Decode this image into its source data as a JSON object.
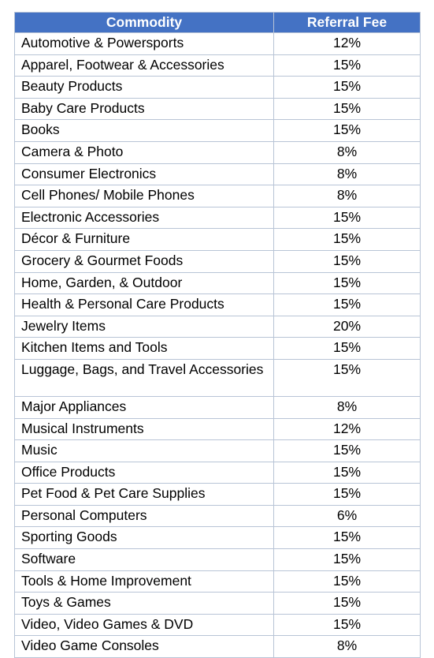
{
  "table": {
    "headers": {
      "commodity": "Commodity",
      "fee": "Referral Fee"
    },
    "header_color": "#4472c4",
    "rows": [
      {
        "commodity": "Automotive & Powersports",
        "fee": "12%"
      },
      {
        "commodity": "Apparel, Footwear & Accessories",
        "fee": "15%"
      },
      {
        "commodity": "Beauty Products",
        "fee": "15%"
      },
      {
        "commodity": "Baby Care Products",
        "fee": "15%"
      },
      {
        "commodity": "Books",
        "fee": "15%"
      },
      {
        "commodity": "Camera & Photo",
        "fee": "8%"
      },
      {
        "commodity": "Consumer Electronics",
        "fee": "8%"
      },
      {
        "commodity": "Cell Phones/ Mobile Phones",
        "fee": "8%"
      },
      {
        "commodity": "Electronic Accessories",
        "fee": "15%"
      },
      {
        "commodity": "Décor & Furniture",
        "fee": "15%"
      },
      {
        "commodity": "Grocery & Gourmet Foods",
        "fee": "15%"
      },
      {
        "commodity": "Home, Garden, & Outdoor",
        "fee": "15%"
      },
      {
        "commodity": "Health & Personal Care Products",
        "fee": "15%"
      },
      {
        "commodity": "Jewelry Items",
        "fee": "20%"
      },
      {
        "commodity": "Kitchen Items and Tools",
        "fee": "15%"
      },
      {
        "commodity": "Luggage, Bags, and Travel Accessories",
        "fee": "15%"
      },
      {
        "commodity": "Major Appliances",
        "fee": "8%"
      },
      {
        "commodity": "Musical Instruments",
        "fee": "12%"
      },
      {
        "commodity": "Music",
        "fee": "15%"
      },
      {
        "commodity": "Office Products",
        "fee": "15%"
      },
      {
        "commodity": "Pet Food & Pet Care Supplies",
        "fee": "15%"
      },
      {
        "commodity": "Personal Computers",
        "fee": "6%"
      },
      {
        "commodity": "Sporting Goods",
        "fee": "15%"
      },
      {
        "commodity": "Software",
        "fee": "15%"
      },
      {
        "commodity": "Tools & Home Improvement",
        "fee": "15%"
      },
      {
        "commodity": "Toys & Games",
        "fee": "15%"
      },
      {
        "commodity": "Video, Video Games & DVD",
        "fee": "15%"
      },
      {
        "commodity": "Video Game Consoles",
        "fee": "8%"
      }
    ]
  }
}
